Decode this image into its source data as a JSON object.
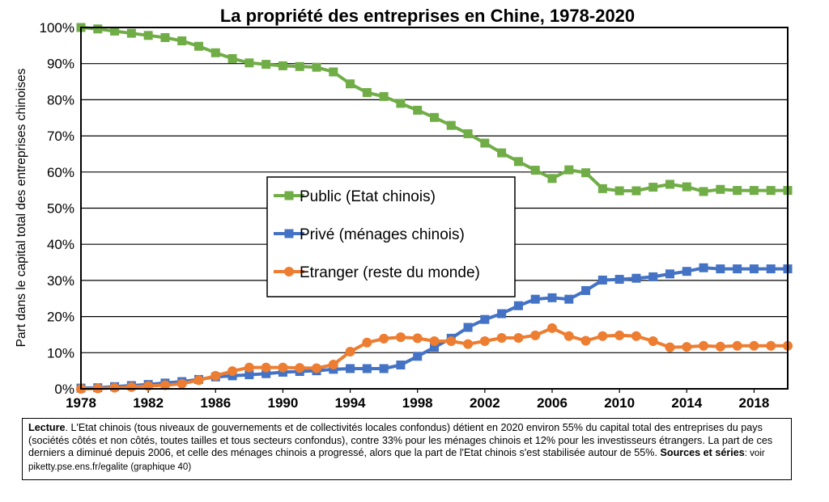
{
  "chart_data": {
    "type": "line",
    "title": "La propriété des entreprises en Chine, 1978-2020",
    "ylabel": "Part dans le capital total des entreprises chinoises",
    "xlabel": "",
    "xlim": [
      1978,
      2020
    ],
    "ylim": [
      0,
      100
    ],
    "x_ticks": [
      "1978",
      "1982",
      "1986",
      "1990",
      "1994",
      "1998",
      "2002",
      "2006",
      "2010",
      "2014",
      "2018"
    ],
    "y_ticks": [
      "0%",
      "10%",
      "20%",
      "30%",
      "40%",
      "50%",
      "60%",
      "70%",
      "80%",
      "90%",
      "100%"
    ],
    "grid": "horizontal",
    "legend_position": "center-left",
    "x": [
      1978,
      1979,
      1980,
      1981,
      1982,
      1983,
      1984,
      1985,
      1986,
      1987,
      1988,
      1989,
      1990,
      1991,
      1992,
      1993,
      1994,
      1995,
      1996,
      1997,
      1998,
      1999,
      2000,
      2001,
      2002,
      2003,
      2004,
      2005,
      2006,
      2007,
      2008,
      2009,
      2010,
      2011,
      2012,
      2013,
      2014,
      2015,
      2016,
      2017,
      2018,
      2019,
      2020
    ],
    "series": [
      {
        "name": "Public (Etat chinois)",
        "color": "#70AD47",
        "values": [
          100,
          99.6,
          99,
          98.4,
          97.8,
          97.2,
          96.3,
          94.8,
          93,
          91.4,
          90.2,
          89.8,
          89.4,
          89.2,
          89,
          87.7,
          84.4,
          82,
          80.9,
          79,
          77.1,
          75.1,
          72.9,
          70.6,
          68,
          65.3,
          62.9,
          60.5,
          58.2,
          60.6,
          59.8,
          55.4,
          54.8,
          54.8,
          55.8,
          56.6,
          55.9,
          54.6,
          55.2,
          54.9,
          54.9,
          54.9,
          54.9
        ]
      },
      {
        "name": "Privé (ménages chinois)",
        "color": "#4472C4",
        "values": [
          0.2,
          0.3,
          0.6,
          0.9,
          1.2,
          1.6,
          2,
          2.6,
          3.3,
          3.6,
          3.9,
          4.2,
          4.6,
          4.8,
          5,
          5.4,
          5.6,
          5.6,
          5.6,
          6.6,
          9,
          11.5,
          14,
          17,
          19.2,
          20.8,
          23,
          24.8,
          25.2,
          24.8,
          27.2,
          30.1,
          30.3,
          30.6,
          31,
          31.8,
          32.5,
          33.5,
          33.2,
          33.2,
          33.2,
          33.2,
          33.2
        ]
      },
      {
        "name": "Etranger (reste du monde)",
        "color": "#ED7D31",
        "values": [
          0,
          0.1,
          0.3,
          0.5,
          0.8,
          1,
          1.4,
          2.4,
          3.6,
          4.9,
          5.9,
          5.9,
          5.9,
          5.8,
          5.7,
          6.7,
          10.3,
          12.8,
          13.9,
          14.3,
          14,
          13.2,
          13.2,
          12.4,
          13.2,
          14.1,
          14.1,
          14.8,
          16.8,
          14.6,
          13.3,
          14.6,
          14.8,
          14.6,
          13.2,
          11.5,
          11.6,
          11.9,
          11.7,
          11.9,
          11.9,
          11.9,
          11.9
        ]
      }
    ]
  },
  "note": {
    "lead": "Lecture",
    "text": ". L'Etat chinois (tous niveaux de gouvernements et de collectivités locales confondus) détient en 2020 environ 55% du capital total des entreprises du pays (sociétés côtés et non côtés, toutes tailles et tous secteurs confondus), contre 33% pour les ménages chinois et 12% pour les investisseurs étrangers. La part de ces derniers a diminué depuis 2006, et celle des ménages chinois a progressé, alors que la part de l'Etat chinois s'est stabilisée autour de 55%.",
    "sources_label": "Sources et séries",
    "sources_value": ": voir piketty.pse.ens.fr/egalite (graphique 40)"
  }
}
